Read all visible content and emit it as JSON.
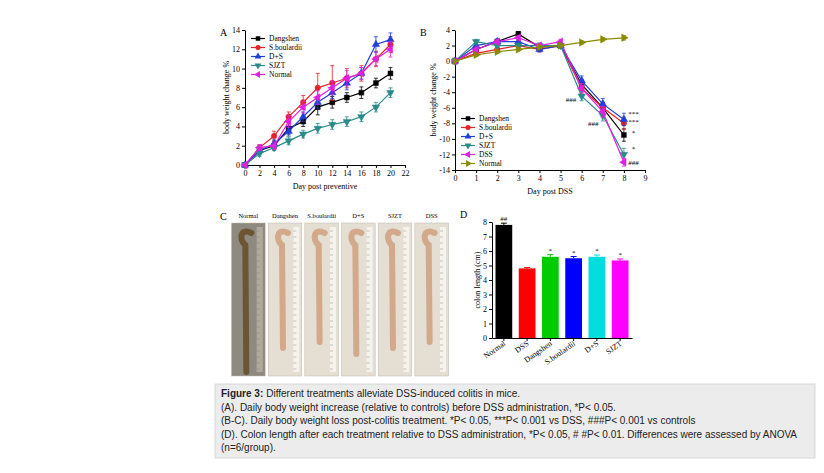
{
  "chart_data": [
    {
      "panel": "A",
      "type": "line",
      "x_label": "Day post preventive",
      "y_label": "body weight change %",
      "x": [
        0,
        2,
        4,
        6,
        8,
        10,
        12,
        14,
        16,
        18,
        20
      ],
      "xlim": [
        0,
        22
      ],
      "xticks": [
        0,
        2,
        4,
        6,
        8,
        10,
        12,
        14,
        16,
        18,
        20,
        22
      ],
      "ylim": [
        0,
        14
      ],
      "yticks": [
        0,
        2,
        4,
        6,
        8,
        10,
        12,
        14
      ],
      "legend": "upper left",
      "series": [
        {
          "name": "Dangshen",
          "color": "#000000",
          "marker": "square",
          "values": [
            0,
            1.5,
            2,
            3.8,
            4.5,
            6,
            6.5,
            7,
            7.5,
            8.5,
            9.5
          ],
          "errors": [
            0,
            0.3,
            0.4,
            0.6,
            0.5,
            0.8,
            0.6,
            0.5,
            0.6,
            0.5,
            0.6
          ]
        },
        {
          "name": "S.boulardii",
          "color": "#e8202a",
          "marker": "circle",
          "values": [
            0,
            1.8,
            3,
            5,
            6.5,
            8,
            8.5,
            9,
            9.5,
            11,
            12.5
          ],
          "errors": [
            0,
            0.3,
            0.5,
            0.5,
            0.7,
            1.5,
            1.8,
            1,
            0.8,
            0.8,
            0.8
          ]
        },
        {
          "name": "D+S",
          "color": "#1f3fd8",
          "marker": "triangle-up",
          "values": [
            0,
            1.5,
            2.2,
            3.5,
            5,
            6.5,
            7.5,
            8.5,
            9.5,
            12.5,
            13
          ],
          "errors": [
            0,
            0.3,
            0.4,
            0.5,
            0.5,
            0.6,
            0.6,
            0.7,
            0.6,
            0.8,
            0.7
          ]
        },
        {
          "name": "SJZT",
          "color": "#2a8a8a",
          "marker": "triangle-down",
          "values": [
            0,
            1.2,
            1.8,
            2.5,
            3.2,
            3.8,
            4.2,
            4.5,
            5,
            6,
            7.5
          ],
          "errors": [
            0,
            0.3,
            0.3,
            0.4,
            0.4,
            0.5,
            0.5,
            0.5,
            0.5,
            0.5,
            0.5
          ]
        },
        {
          "name": "Normal",
          "color": "#e020e0",
          "marker": "triangle-left",
          "values": [
            0,
            1.8,
            2,
            4.5,
            6,
            7,
            8,
            9,
            9.5,
            11,
            12
          ],
          "errors": [
            0,
            0.3,
            0.4,
            0.6,
            0.6,
            0.7,
            0.7,
            0.8,
            0.6,
            0.7,
            0.8
          ]
        }
      ]
    },
    {
      "panel": "B",
      "type": "line",
      "x_label": "Day post DSS",
      "y_label": "body weight change %",
      "x": [
        0,
        1,
        2,
        3,
        4,
        5,
        6,
        7,
        8
      ],
      "xlim": [
        0,
        9
      ],
      "xticks": [
        0,
        1,
        2,
        3,
        4,
        5,
        6,
        7,
        8,
        9
      ],
      "ylim": [
        -14,
        4
      ],
      "yticks": [
        -14,
        -12,
        -10,
        -8,
        -6,
        -4,
        -2,
        0,
        2,
        4
      ],
      "legend": "lower left",
      "series": [
        {
          "name": "Dangshen",
          "color": "#000000",
          "marker": "square",
          "values": [
            0,
            1.5,
            2.5,
            3.5,
            1.8,
            2,
            -3,
            -6,
            -9.5
          ],
          "errors": [
            0,
            0.3,
            0.3,
            0.3,
            0.3,
            0.3,
            0.6,
            0.7,
            0.8
          ]
        },
        {
          "name": "S.boulardii",
          "color": "#e8202a",
          "marker": "circle",
          "values": [
            0,
            1,
            1.5,
            2,
            1.5,
            2,
            -3.5,
            -6,
            -8
          ],
          "errors": [
            0,
            0.3,
            0.3,
            0.3,
            0.3,
            0.3,
            0.6,
            0.7,
            0.8
          ]
        },
        {
          "name": "D+S",
          "color": "#1f3fd8",
          "marker": "triangle-up",
          "values": [
            0,
            2,
            2.5,
            2.5,
            1.5,
            2,
            -2.5,
            -5.5,
            -7.5
          ],
          "errors": [
            0,
            0.3,
            0.3,
            0.3,
            0.3,
            0.3,
            0.6,
            0.7,
            0.8
          ]
        },
        {
          "name": "SJZT",
          "color": "#2a8a8a",
          "marker": "triangle-down",
          "values": [
            0,
            2.5,
            2,
            2,
            2,
            2,
            -4.5,
            -7,
            -12
          ],
          "errors": [
            0,
            0.3,
            0.3,
            0.3,
            0.3,
            0.3,
            0.6,
            0.7,
            0.8
          ]
        },
        {
          "name": "DSS",
          "color": "#e020e0",
          "marker": "triangle-left",
          "values": [
            0,
            1.5,
            2.5,
            3,
            2,
            2.5,
            -3.5,
            -6.5,
            -13
          ],
          "errors": [
            0,
            0.3,
            0.3,
            0.3,
            0.3,
            0.3,
            0.6,
            0.7,
            0.5
          ]
        },
        {
          "name": "Normal",
          "color": "#8a8a00",
          "marker": "triangle-right",
          "values": [
            0,
            0.8,
            1.2,
            1.5,
            1.8,
            2,
            2.4,
            2.8,
            3
          ],
          "errors": [
            0,
            0.2,
            0.2,
            0.2,
            0.2,
            0.2,
            0.2,
            0.2,
            0.3
          ]
        }
      ],
      "annotations": [
        {
          "x": 8.45,
          "y": -7,
          "text": "***"
        },
        {
          "x": 8.45,
          "y": -8.1,
          "text": "***"
        },
        {
          "x": 8.45,
          "y": -9.5,
          "text": "*"
        },
        {
          "x": 8.45,
          "y": -11.5,
          "text": "*"
        },
        {
          "x": 8.45,
          "y": -13.3,
          "text": "###"
        },
        {
          "x": 5.5,
          "y": -5.3,
          "text": "###"
        },
        {
          "x": 6.55,
          "y": -8.3,
          "text": "###"
        }
      ]
    },
    {
      "panel": "D",
      "type": "bar",
      "y_label": "colon length (cm)",
      "categories": [
        "Normal",
        "DSS",
        "Dangshen",
        "S.boulardii",
        "D+S",
        "SJZT"
      ],
      "values": [
        7.8,
        4.8,
        5.6,
        5.5,
        5.6,
        5.35
      ],
      "errors": [
        0.12,
        0.06,
        0.15,
        0.12,
        0.12,
        0.1
      ],
      "colors": [
        "#000000",
        "#ff0000",
        "#00cc00",
        "#0000ff",
        "#00dddd",
        "#ff00ff"
      ],
      "annotations": [
        "##",
        null,
        "*",
        "*",
        "*",
        "*"
      ],
      "ylim": [
        0,
        8
      ],
      "yticks": [
        0,
        1,
        2,
        3,
        4,
        5,
        6,
        7,
        8
      ]
    }
  ],
  "panel_c": {
    "panel": "C",
    "labels": [
      "Normal",
      "Dangshen",
      "S.boulardii",
      "D+S",
      "SJZT",
      "DSS"
    ]
  },
  "caption": {
    "label": "Figure 3:",
    "title": "Different treatments alleviate DSS-induced colitis in mice.",
    "lines": [
      "(A). Daily body weight increase (relative to controls) before DSS administration, *P< 0.05.",
      "(B-C). Daily body weight loss post-colitis treatment. *P< 0.05, ***P< 0.001 vs DSS, ###P< 0.001 vs controls",
      "(D). Colon length after each treatment relative to DSS administration, *P< 0.05, # #P< 0.01. Differences were assessed by ANOVA (n=6/group)."
    ]
  }
}
